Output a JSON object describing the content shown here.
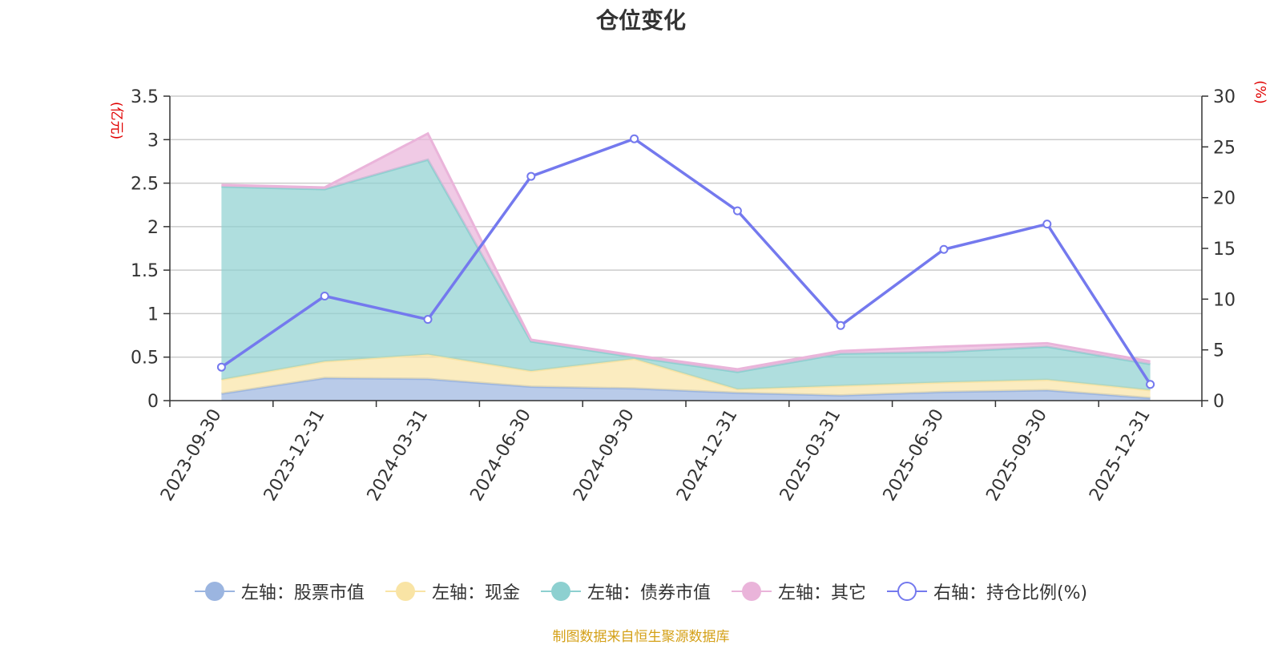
{
  "chart_data": {
    "type": "area",
    "title": "仓位变化",
    "categories": [
      "2023-09-30",
      "2023-12-31",
      "2024-03-31",
      "2024-06-30",
      "2024-09-30",
      "2024-12-31",
      "2025-03-31",
      "2025-06-30",
      "2025-09-30",
      "2025-12-31"
    ],
    "y_left": {
      "label": "(亿元)",
      "ylim": [
        0,
        3.5
      ],
      "ticks": [
        "0",
        "0.5",
        "1",
        "1.5",
        "2",
        "2.5",
        "3",
        "3.5"
      ]
    },
    "y_right": {
      "label": "(%)",
      "ylim": [
        0,
        30
      ],
      "ticks": [
        "0",
        "5",
        "10",
        "15",
        "20",
        "25",
        "30"
      ]
    },
    "grid": true,
    "legend_position": "bottom",
    "stacked": true,
    "series": [
      {
        "name": "左轴：股票市值",
        "axis": "left",
        "type": "area",
        "color": "#9bb5e0",
        "values": [
          0.08,
          0.26,
          0.25,
          0.16,
          0.14,
          0.09,
          0.06,
          0.1,
          0.12,
          0.03
        ]
      },
      {
        "name": "左轴：现金",
        "axis": "left",
        "type": "area",
        "color": "#f9e4a5",
        "values": [
          0.16,
          0.19,
          0.28,
          0.18,
          0.34,
          0.04,
          0.11,
          0.11,
          0.12,
          0.09
        ]
      },
      {
        "name": "左轴：债券市值",
        "axis": "left",
        "type": "area",
        "color": "#8dd0d0",
        "values": [
          2.22,
          1.98,
          2.24,
          0.34,
          0.02,
          0.2,
          0.37,
          0.35,
          0.38,
          0.3
        ]
      },
      {
        "name": "左轴：其它",
        "axis": "left",
        "type": "area",
        "color": "#eab4da",
        "values": [
          0.02,
          0.02,
          0.3,
          0.02,
          0.02,
          0.03,
          0.03,
          0.06,
          0.04,
          0.03
        ]
      },
      {
        "name": "右轴：持仓比例(%)",
        "axis": "right",
        "type": "line",
        "color": "#7479ee",
        "values": [
          3.3,
          10.3,
          8.0,
          22.1,
          25.8,
          18.7,
          7.4,
          14.9,
          17.4,
          1.6
        ]
      }
    ]
  },
  "source_text": "制图数据来自恒生聚源数据库"
}
